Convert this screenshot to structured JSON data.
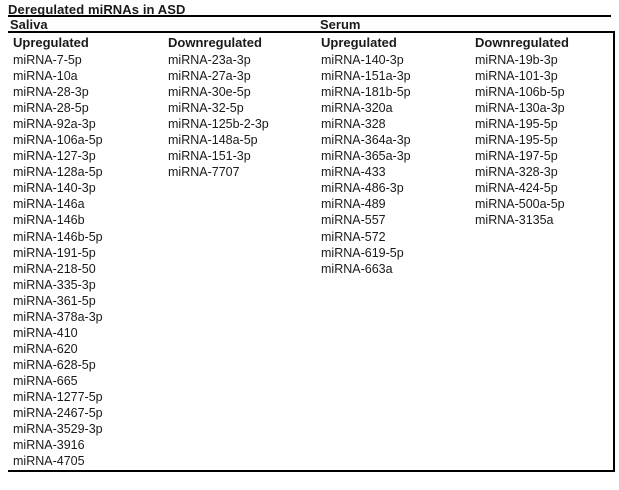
{
  "title": "Deregulated miRNAs in ASD",
  "sections": [
    {
      "name": "Saliva",
      "columns": [
        {
          "header": "Upregulated",
          "items": [
            "miRNA-7-5p",
            "miRNA-10a",
            "miRNA-28-3p",
            "miRNA-28-5p",
            "miRNA-92a-3p",
            "miRNA-106a-5p",
            "miRNA-127-3p",
            "miRNA-128a-5p",
            "miRNA-140-3p",
            "miRNA-146a",
            "miRNA-146b",
            "miRNA-146b-5p",
            "miRNA-191-5p",
            "miRNA-218-50",
            "miRNA-335-3p",
            "miRNA-361-5p",
            "miRNA-378a-3p",
            "miRNA-410",
            "miRNA-620",
            "miRNA-628-5p",
            "miRNA-665",
            "miRNA-1277-5p",
            "miRNA-2467-5p",
            "miRNA-3529-3p",
            "miRNA-3916",
            "miRNA-4705"
          ]
        },
        {
          "header": "Downregulated",
          "items": [
            "miRNA-23a-3p",
            "miRNA-27a-3p",
            "miRNA-30e-5p",
            "miRNA-32-5p",
            "miRNA-125b-2-3p",
            "miRNA-148a-5p",
            "miRNA-151-3p",
            "miRNA-7707"
          ]
        }
      ]
    },
    {
      "name": "Serum",
      "columns": [
        {
          "header": "Upregulated",
          "items": [
            "miRNA-140-3p",
            "miRNA-151a-3p",
            "miRNA-181b-5p",
            "miRNA-320a",
            "miRNA-328",
            "miRNA-364a-3p",
            "miRNA-365a-3p",
            "miRNA-433",
            "miRNA-486-3p",
            "miRNA-489",
            "miRNA-557",
            "miRNA-572",
            "miRNA-619-5p",
            "miRNA-663a"
          ]
        },
        {
          "header": "Downregulated",
          "items": [
            "miRNA-19b-3p",
            "miRNA-101-3p",
            "miRNA-106b-5p",
            "miRNA-130a-3p",
            "miRNA-195-5p",
            "miRNA-195-5p",
            "miRNA-197-5p",
            "miRNA-328-3p",
            "miRNA-424-5p",
            "miRNA-500a-5p",
            "miRNA-3135a"
          ]
        }
      ]
    }
  ],
  "colors": {
    "text": "#1a1a1a",
    "rule": "#000000",
    "background": "#ffffff"
  }
}
